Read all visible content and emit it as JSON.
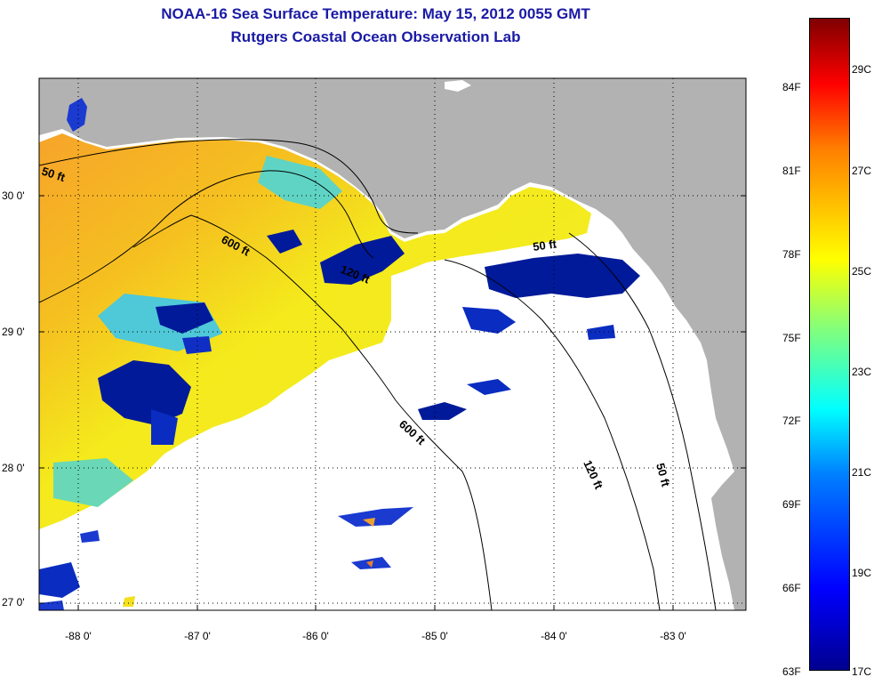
{
  "title": "NOAA-16 Sea Surface Temperature:  May 15, 2012 0055 GMT",
  "subtitle": "Rutgers Coastal Ocean Observation Lab",
  "lat_labels": [
    "30 0'",
    "29 0'",
    "28 0'",
    "27 0'"
  ],
  "lon_labels": [
    "-88 0'",
    "-87 0'",
    "-86 0'",
    "-85 0'",
    "-84 0'",
    "-83 0'"
  ],
  "contour_labels": {
    "c50_west": "50 ft",
    "c600_north": "600 ft",
    "c120_north": "120 ft",
    "c50_east": "50 ft",
    "c600_south": "600 ft",
    "c120_south": "120 ft",
    "c50_south": "50 ft"
  },
  "colorbar": {
    "fahrenheit": [
      "84F",
      "81F",
      "78F",
      "75F",
      "72F",
      "69F",
      "66F",
      "63F"
    ],
    "celsius": [
      "29C",
      "27C",
      "25C",
      "23C",
      "21C",
      "19C",
      "17C"
    ]
  },
  "colors": {
    "title": "#1a1aa6",
    "land": "#b2b2b2",
    "warm_sst": "#f4ec1e",
    "cold_sst": "#001a9a",
    "no_data": "#ffffff"
  }
}
